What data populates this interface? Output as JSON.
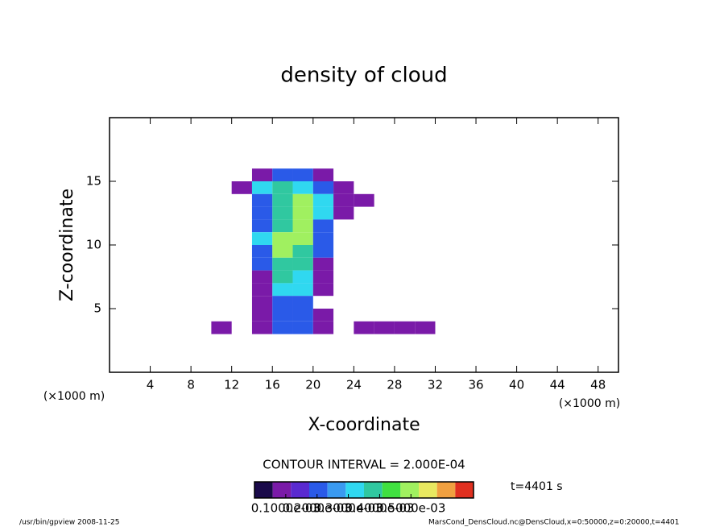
{
  "chart_data": {
    "type": "heatmap",
    "title": "density of cloud",
    "xlabel": "X-coordinate",
    "ylabel": "Z-coordinate",
    "xunit": "(×1000 m)",
    "yunit": "(×1000 m)",
    "xlim": [
      0,
      50
    ],
    "ylim": [
      0,
      20
    ],
    "xticks": [
      4,
      8,
      12,
      16,
      20,
      24,
      28,
      32,
      36,
      40,
      44,
      48
    ],
    "yticks": [
      5,
      10,
      15
    ],
    "x": [
      11,
      13,
      15,
      17,
      19,
      21,
      23,
      25,
      27,
      29,
      31,
      33
    ],
    "z": [
      15.5,
      14.5,
      13.5,
      12.5,
      11.5,
      10.5,
      9.5,
      8.5,
      7.5,
      6.5,
      5.5,
      4.5,
      3.5
    ],
    "values": [
      [
        null,
        null,
        0.0001,
        0.0002,
        0.0002,
        0.0001,
        null,
        null,
        null,
        null,
        null,
        null
      ],
      [
        null,
        0.0001,
        0.0003,
        0.0004,
        0.0003,
        0.0002,
        0.0001,
        null,
        null,
        null,
        null,
        null
      ],
      [
        null,
        null,
        0.0002,
        0.0004,
        0.0005,
        0.0003,
        0.0001,
        0.0001,
        null,
        null,
        null,
        null
      ],
      [
        null,
        null,
        0.0002,
        0.0004,
        0.0005,
        0.0003,
        0.0001,
        null,
        null,
        null,
        null,
        null
      ],
      [
        null,
        null,
        0.0002,
        0.0004,
        0.0005,
        0.0002,
        null,
        null,
        null,
        null,
        null,
        null
      ],
      [
        null,
        null,
        0.0003,
        0.0005,
        0.0005,
        0.0002,
        null,
        null,
        null,
        null,
        null,
        null
      ],
      [
        null,
        null,
        0.0002,
        0.0005,
        0.0004,
        0.0002,
        null,
        null,
        null,
        null,
        null,
        null
      ],
      [
        null,
        null,
        0.0002,
        0.0004,
        0.0004,
        0.0001,
        null,
        null,
        null,
        null,
        null,
        null
      ],
      [
        null,
        null,
        0.0001,
        0.0004,
        0.0003,
        0.0001,
        null,
        null,
        null,
        null,
        null,
        null
      ],
      [
        null,
        null,
        0.0001,
        0.0003,
        0.0003,
        0.0001,
        null,
        null,
        null,
        null,
        null,
        null
      ],
      [
        null,
        null,
        0.0001,
        0.0002,
        0.0002,
        null,
        null,
        null,
        null,
        null,
        null,
        null
      ],
      [
        null,
        null,
        0.0001,
        0.0002,
        0.0002,
        0.0001,
        null,
        null,
        null,
        null,
        null,
        null
      ],
      [
        0.0001,
        null,
        0.0001,
        0.0002,
        0.0002,
        0.0001,
        null,
        0.0001,
        0.0001,
        0.0001,
        0.0001,
        null
      ]
    ],
    "colorbar": {
      "lim": [
        0,
        0.0007
      ],
      "colors": [
        "#1a0a4a",
        "#7a1aa8",
        "#5a2ad0",
        "#2a5ae8",
        "#3a9af0",
        "#30d8f0",
        "#30c8a0",
        "#40e040",
        "#a0f060",
        "#e8e860",
        "#f0a040",
        "#e03020"
      ],
      "ticks": [
        {
          "value": 0.0001,
          "label": "0.1000e-03"
        },
        {
          "value": 0.0002,
          "label": "0.2000e-03"
        },
        {
          "value": 0.0003,
          "label": "0.3000e-03"
        },
        {
          "value": 0.0004,
          "label": "0.4000e-03"
        },
        {
          "value": 0.0005,
          "label": "0.5000e-03"
        }
      ]
    },
    "contour_interval": "CONTOUR INTERVAL = 2.000E-04",
    "time_label": "t=4401 s",
    "footer_left": "/usr/bin/gpview  2008-11-25",
    "footer_right": "MarsCond_DensCloud.nc@DensCloud,x=0:50000,z=0:20000,t=4401"
  }
}
